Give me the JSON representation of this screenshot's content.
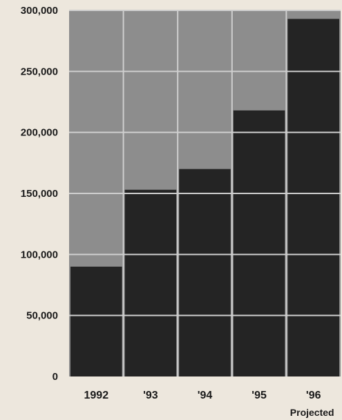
{
  "chart_data": {
    "type": "bar",
    "categories": [
      "1992",
      "'93",
      "'94",
      "'95",
      "'96"
    ],
    "category_sublabels": [
      "",
      "",
      "",
      "",
      "Projected"
    ],
    "values": [
      90000,
      153000,
      170000,
      218000,
      293000
    ],
    "ylim": [
      0,
      300000
    ],
    "yticks": [
      0,
      50000,
      100000,
      150000,
      200000,
      250000,
      300000
    ],
    "ytick_labels": [
      "0",
      "50,000",
      "100,000",
      "150,000",
      "200,000",
      "250,000",
      "300,000"
    ],
    "grid": true,
    "title": "",
    "xlabel": "",
    "ylabel": ""
  },
  "colors": {
    "background": "#ede7dd",
    "plot_area": "#8d8d8d",
    "bar": "#242424",
    "grid": "#cfcfcf",
    "text": "#1a1a1a"
  }
}
